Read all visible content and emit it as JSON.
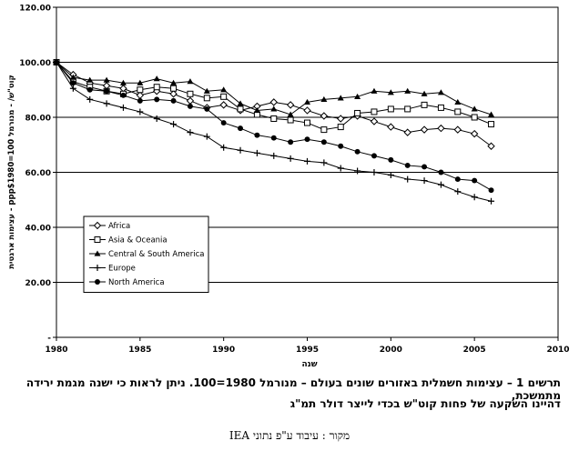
{
  "chart_data": {
    "type": "line",
    "xlabel": "שנה",
    "ylabel": "עצימות ארגטית - ppp$קוט\"ש/ - מנורמל 100=1980",
    "xlim": [
      1980,
      2010
    ],
    "ylim": [
      0,
      120
    ],
    "x_ticks": [
      1980,
      1985,
      1990,
      1995,
      2000,
      2005,
      2010
    ],
    "x_tick_labels": [
      "1980",
      "1985",
      "1990",
      "1995",
      "2000",
      "2005",
      "2010"
    ],
    "y_ticks": [
      0,
      20,
      40,
      60,
      80,
      100,
      120
    ],
    "y_tick_labels": [
      "-",
      "20.00",
      "40.00",
      "60.00",
      "80.00",
      "100.00",
      "120.00"
    ],
    "grid": "horizontal",
    "legend_position": "inside-lower-left",
    "x": [
      1980,
      1981,
      1982,
      1983,
      1984,
      1985,
      1986,
      1987,
      1988,
      1989,
      1990,
      1991,
      1992,
      1993,
      1994,
      1995,
      1996,
      1997,
      1998,
      1999,
      2000,
      2001,
      2002,
      2003,
      2004,
      2005,
      2006
    ],
    "series": [
      {
        "name": "Africa",
        "marker": "diamond-open",
        "values": [
          100,
          95.5,
          92.5,
          91.5,
          90.5,
          88,
          89.5,
          88.5,
          86,
          83.5,
          84.5,
          82.5,
          84,
          85.5,
          84.5,
          82.5,
          80.5,
          79.5,
          80.5,
          78.5,
          76.5,
          74.5,
          75.5,
          76,
          75.5,
          74,
          69.5
        ]
      },
      {
        "name": "Asia & Oceania",
        "marker": "square-open",
        "values": [
          100,
          93,
          91,
          89.5,
          88.5,
          90,
          91,
          90.5,
          88.5,
          87,
          87.5,
          83,
          81,
          79.5,
          79,
          78,
          75.5,
          76.5,
          81.5,
          82,
          83,
          83,
          84.5,
          83.5,
          82,
          80,
          77.5
        ]
      },
      {
        "name": "Central & South America",
        "marker": "triangle-filled",
        "values": [
          100,
          94.5,
          93.5,
          93.5,
          92.5,
          92.5,
          94,
          92.5,
          93,
          89.5,
          90,
          85,
          82.5,
          83,
          81,
          85.5,
          86.5,
          87,
          87.5,
          89.5,
          89,
          89.5,
          88.5,
          89,
          85.5,
          83,
          81
        ]
      },
      {
        "name": "Europe",
        "marker": "plus",
        "values": [
          100,
          90.5,
          86.5,
          85,
          83.5,
          82,
          79.5,
          77.5,
          74.5,
          73,
          69,
          68,
          67,
          66,
          65,
          64,
          63.5,
          61.5,
          60.5,
          60,
          59,
          57.5,
          57,
          55.5,
          53,
          51,
          49.5
        ]
      },
      {
        "name": "North America",
        "marker": "circle-filled",
        "values": [
          100,
          92.5,
          90,
          89.5,
          88,
          86,
          86.5,
          86,
          84,
          83,
          78,
          76,
          73.5,
          72.5,
          71,
          72,
          71,
          69.5,
          67.5,
          66,
          64.5,
          62.5,
          62,
          60,
          57.5,
          57,
          53.5
        ]
      }
    ]
  },
  "caption": {
    "line1": "תרשים 1 – עצימות חשמלית באזורים שונים בעולם – מנורמל 1980=100. ניתן לראות כי ישנה מגמת ירידה מתמשכת,",
    "line2": "דהיינו השקעה של פחות קוט\"ש בכדי לייצר דולר תמ\"ג"
  },
  "source": "מקור : עיבוד ע\"פ נתוני IEA"
}
